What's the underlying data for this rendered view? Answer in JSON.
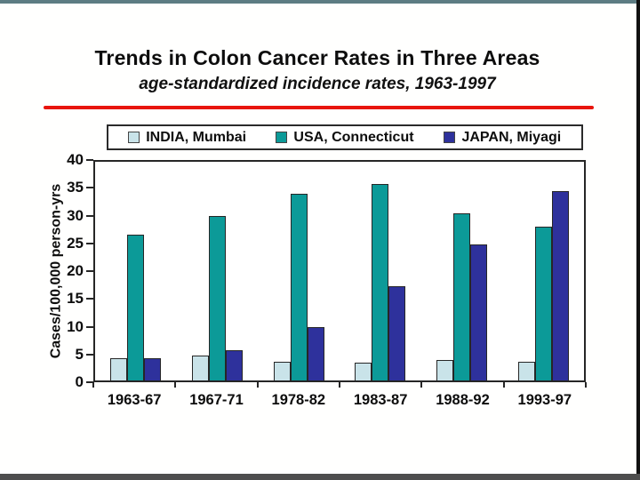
{
  "chart_data": {
    "type": "bar",
    "title": "Trends in Colon Cancer Rates in Three Areas",
    "subtitle": "age-standardized incidence rates, 1963-1997",
    "categories": [
      "1963-67",
      "1967-71",
      "1978-82",
      "1983-87",
      "1988-92",
      "1993-97"
    ],
    "series": [
      {
        "name": "INDIA, Mumbai",
        "color": "#c9e3e9",
        "values": [
          4.1,
          4.6,
          3.4,
          3.2,
          3.8,
          3.4
        ]
      },
      {
        "name": "USA, Connecticut",
        "color": "#0c9a98",
        "values": [
          26.7,
          30.1,
          34.1,
          36.0,
          30.5,
          28.2
        ]
      },
      {
        "name": "JAPAN, Miyagi",
        "color": "#2e319c",
        "values": [
          4.1,
          5.6,
          9.8,
          17.2,
          24.9,
          34.6
        ]
      }
    ],
    "xlabel": "",
    "ylabel": "Cases/100,000 person-yrs",
    "ylim": [
      0,
      40
    ],
    "ytick_step": 5,
    "ytick_labels": [
      "40",
      "35",
      "30",
      "25",
      "20",
      "15",
      "10",
      "5",
      "0"
    ],
    "legend_position": "top",
    "grid": false
  },
  "decor": {
    "red_line_color": "#e8150d",
    "top_strip_color": "#5d7c83",
    "bottom_strip_color": "#4d4d4d",
    "right_strip_color": "#111111"
  }
}
